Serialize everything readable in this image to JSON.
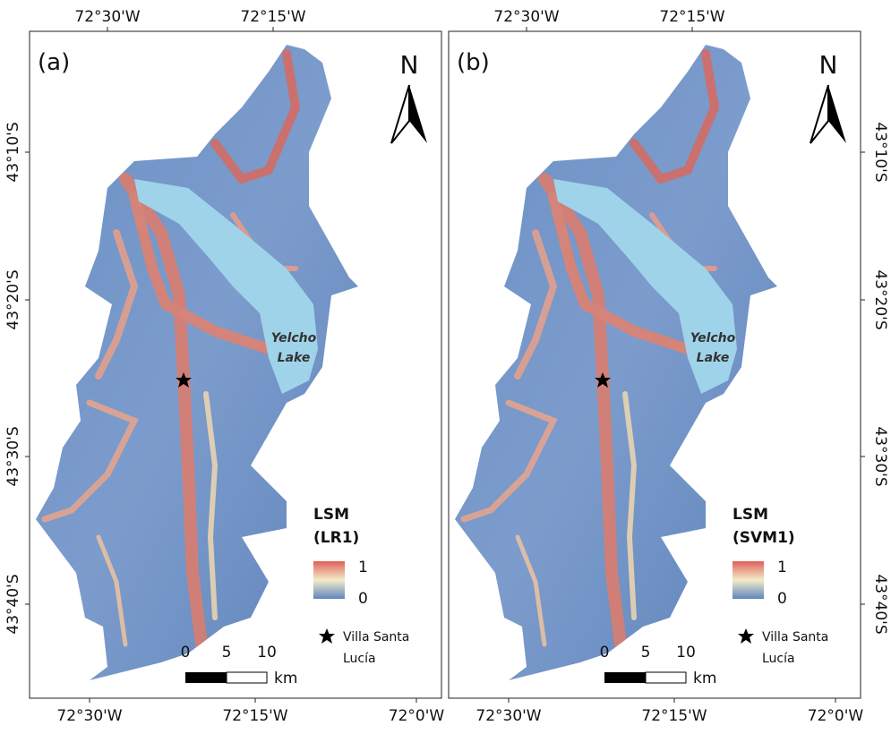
{
  "panels": [
    {
      "label": "(a)",
      "legend_model": "(LR1)"
    },
    {
      "label": "(b)",
      "legend_model": "(SVM1)"
    }
  ],
  "top_lon_ticks": [
    "72°30'W",
    "72°15'W"
  ],
  "bottom_lon_ticks": [
    "72°30'W",
    "72°15'W",
    "72°0'W"
  ],
  "lat_ticks": [
    "43°10'S",
    "43°20'S",
    "43°30'S",
    "43°40'S"
  ],
  "north": "N",
  "lake_label": [
    "Yelcho",
    "Lake"
  ],
  "legend_title": "LSM",
  "legend_max": "1",
  "legend_min": "0",
  "town_label": [
    "Villa Santa",
    "Lucía"
  ],
  "scale_labels": [
    "0",
    "5",
    "10"
  ],
  "scale_unit": "km"
}
